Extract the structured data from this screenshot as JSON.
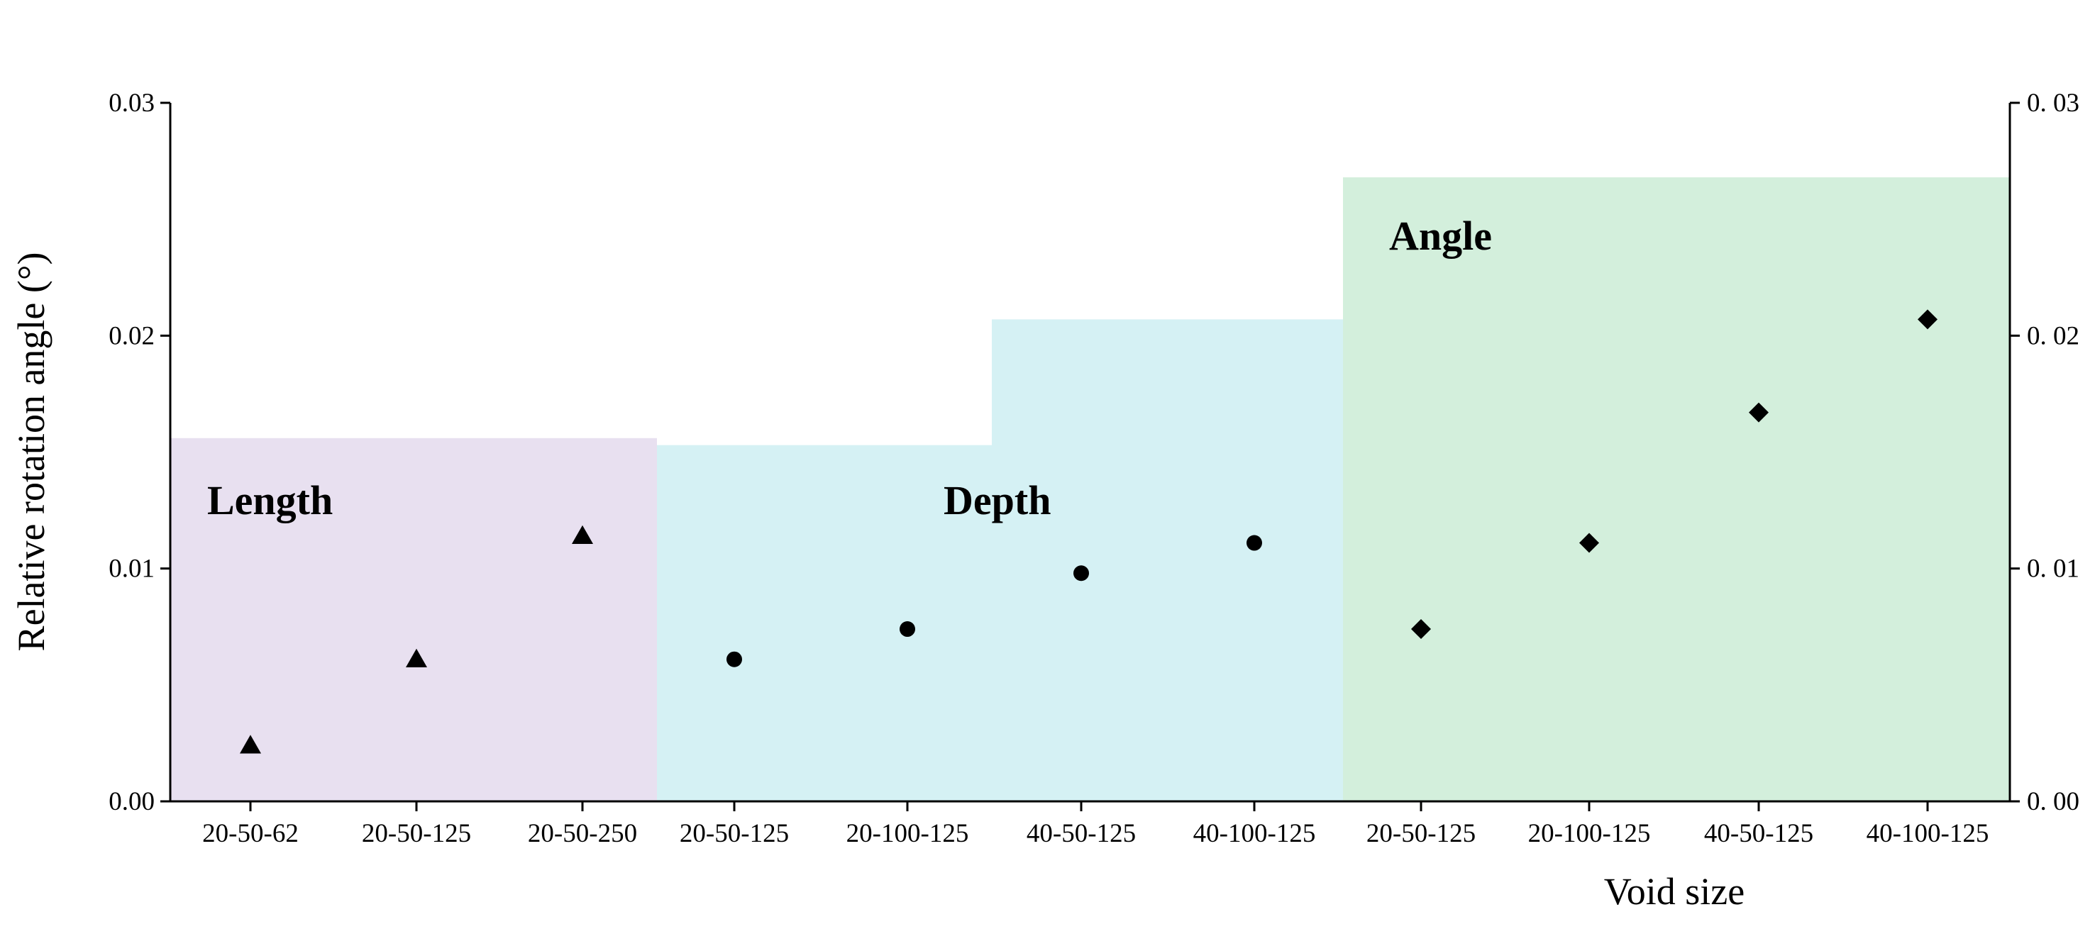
{
  "chart_data": {
    "type": "scatter",
    "title": "",
    "xlabel": "Void size",
    "ylabel": "Relative rotation angle (°)",
    "ylim": [
      0,
      0.03
    ],
    "yticks_left": [
      "0.00",
      "0.01",
      "0.02",
      "0.03"
    ],
    "yticks_right": [
      "0. 00",
      "0. 01",
      "0. 02",
      "0. 03"
    ],
    "ytick_values": [
      0,
      0.01,
      0.02,
      0.03
    ],
    "grid": false,
    "legend": "none",
    "categories": [
      "20-50-62",
      "20-50-125",
      "20-50-250",
      "20-50-125",
      "20-100-125",
      "40-50-125",
      "40-100-125",
      "20-50-125",
      "20-100-125",
      "40-50-125",
      "40-100-125"
    ],
    "groups": [
      {
        "name": "Length",
        "marker": "triangle",
        "color": "#e8e0f0",
        "start_index": 0,
        "values": [
          0.0024,
          0.0061,
          0.0114
        ]
      },
      {
        "name": "Depth",
        "marker": "circle",
        "color": "#d5f1f4",
        "start_index": 3,
        "values": [
          0.0061,
          0.0074,
          0.0098,
          0.0111
        ]
      },
      {
        "name": "Angle",
        "marker": "diamond",
        "color": "#d3efdc",
        "start_index": 7,
        "values": [
          0.0074,
          0.0111,
          0.0167,
          0.0207
        ]
      }
    ],
    "background_regions": [
      {
        "group": "Length",
        "from_index": 0,
        "to_index": 2,
        "top": 0.0156
      },
      {
        "group": "Depth",
        "from_index": 3,
        "to_index": 4,
        "top": 0.0153
      },
      {
        "group": "Depth",
        "from_index": 5,
        "to_index": 6,
        "top": 0.0207
      },
      {
        "group": "Angle",
        "from_index": 7,
        "to_index": 10,
        "top": 0.0268
      }
    ]
  }
}
